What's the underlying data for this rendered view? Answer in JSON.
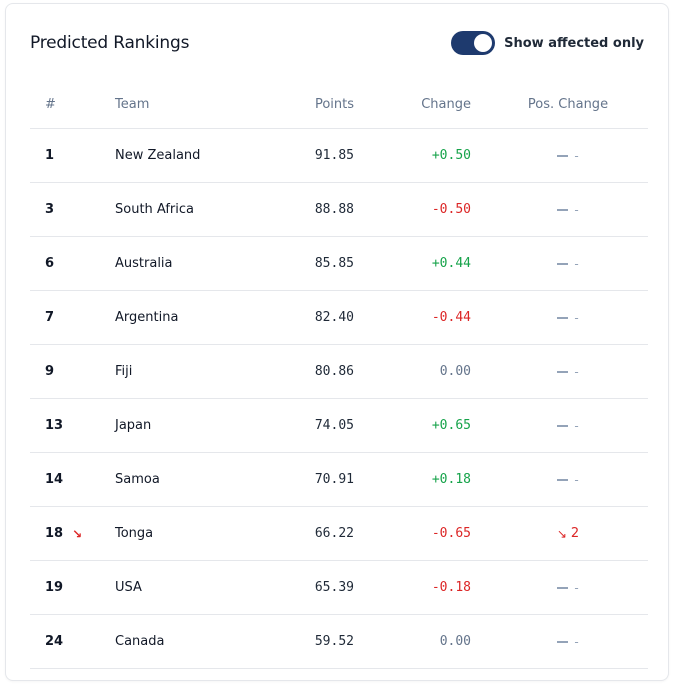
{
  "header": {
    "title": "Predicted Rankings",
    "toggle_label": "Show affected only",
    "toggle_on": true
  },
  "colors": {
    "toggle_bg": "#1e3a6e",
    "positive": "#16a34a",
    "negative": "#dc2626",
    "neutral": "#64748b"
  },
  "table": {
    "columns": [
      "#",
      "Team",
      "Points",
      "Change",
      "Pos. Change"
    ],
    "rows": [
      {
        "rank": "1",
        "team": "New Zealand",
        "points": "91.85",
        "change": "+0.50",
        "change_sign": "pos",
        "pos_change": "-",
        "pos_change_value": "",
        "rank_arrow": false
      },
      {
        "rank": "3",
        "team": "South Africa",
        "points": "88.88",
        "change": "-0.50",
        "change_sign": "neg",
        "pos_change": "-",
        "pos_change_value": "",
        "rank_arrow": false
      },
      {
        "rank": "6",
        "team": "Australia",
        "points": "85.85",
        "change": "+0.44",
        "change_sign": "pos",
        "pos_change": "-",
        "pos_change_value": "",
        "rank_arrow": false
      },
      {
        "rank": "7",
        "team": "Argentina",
        "points": "82.40",
        "change": "-0.44",
        "change_sign": "neg",
        "pos_change": "-",
        "pos_change_value": "",
        "rank_arrow": false
      },
      {
        "rank": "9",
        "team": "Fiji",
        "points": "80.86",
        "change": "0.00",
        "change_sign": "zero",
        "pos_change": "-",
        "pos_change_value": "",
        "rank_arrow": false
      },
      {
        "rank": "13",
        "team": "Japan",
        "points": "74.05",
        "change": "+0.65",
        "change_sign": "pos",
        "pos_change": "-",
        "pos_change_value": "",
        "rank_arrow": false
      },
      {
        "rank": "14",
        "team": "Samoa",
        "points": "70.91",
        "change": "+0.18",
        "change_sign": "pos",
        "pos_change": "-",
        "pos_change_value": "",
        "rank_arrow": false
      },
      {
        "rank": "18",
        "team": "Tonga",
        "points": "66.22",
        "change": "-0.65",
        "change_sign": "neg",
        "pos_change": "",
        "pos_change_value": "2",
        "rank_arrow": true
      },
      {
        "rank": "19",
        "team": "USA",
        "points": "65.39",
        "change": "-0.18",
        "change_sign": "neg",
        "pos_change": "-",
        "pos_change_value": "",
        "rank_arrow": false
      },
      {
        "rank": "24",
        "team": "Canada",
        "points": "59.52",
        "change": "0.00",
        "change_sign": "zero",
        "pos_change": "-",
        "pos_change_value": "",
        "rank_arrow": false
      }
    ]
  }
}
